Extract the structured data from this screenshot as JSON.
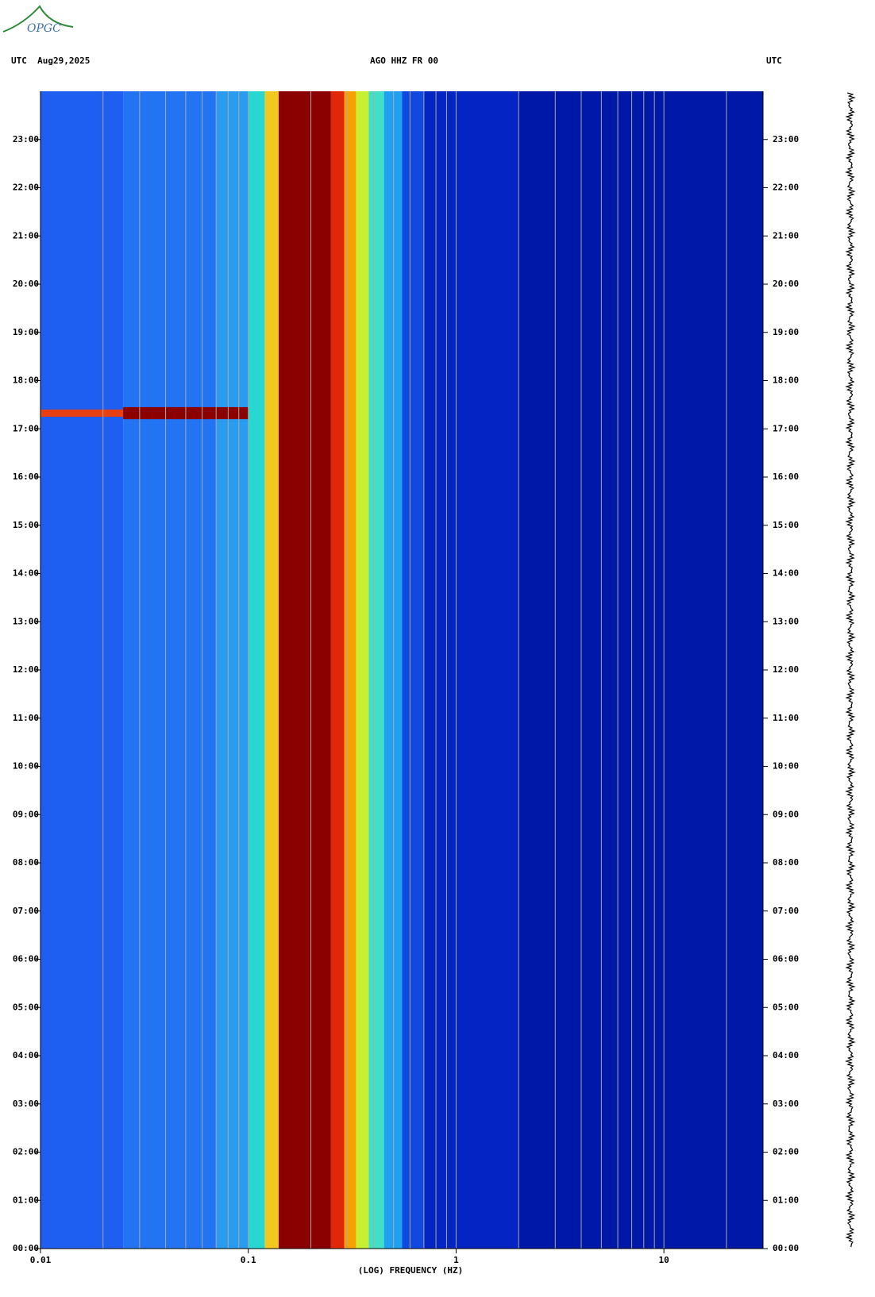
{
  "logo": "OPGC",
  "chart_data": {
    "type": "spectrogram",
    "title": "AGO HHZ FR 00",
    "left_header": "UTC  Aug29,2025",
    "right_header": "UTC",
    "xlabel": "(LOG) FREQUENCY (HZ)",
    "xscale": "log",
    "xlim": [
      0.01,
      30
    ],
    "xticks": [
      0.01,
      0.1,
      1,
      10
    ],
    "xgrid": [
      0.02,
      0.03,
      0.04,
      0.05,
      0.06,
      0.07,
      0.08,
      0.09,
      0.1,
      0.2,
      0.3,
      0.4,
      0.5,
      0.6,
      0.7,
      0.8,
      0.9,
      1,
      2,
      3,
      4,
      5,
      6,
      7,
      8,
      9,
      10,
      20
    ],
    "ylim": [
      0,
      24
    ],
    "yticks": [
      {
        "value": 0,
        "label": "00:00"
      },
      {
        "value": 1,
        "label": "01:00"
      },
      {
        "value": 2,
        "label": "02:00"
      },
      {
        "value": 3,
        "label": "03:00"
      },
      {
        "value": 4,
        "label": "04:00"
      },
      {
        "value": 5,
        "label": "05:00"
      },
      {
        "value": 6,
        "label": "06:00"
      },
      {
        "value": 7,
        "label": "07:00"
      },
      {
        "value": 8,
        "label": "08:00"
      },
      {
        "value": 9,
        "label": "09:00"
      },
      {
        "value": 10,
        "label": "10:00"
      },
      {
        "value": 11,
        "label": "11:00"
      },
      {
        "value": 12,
        "label": "12:00"
      },
      {
        "value": 13,
        "label": "13:00"
      },
      {
        "value": 14,
        "label": "14:00"
      },
      {
        "value": 15,
        "label": "15:00"
      },
      {
        "value": 16,
        "label": "16:00"
      },
      {
        "value": 17,
        "label": "17:00"
      },
      {
        "value": 18,
        "label": "18:00"
      },
      {
        "value": 19,
        "label": "19:00"
      },
      {
        "value": 20,
        "label": "20:00"
      },
      {
        "value": 21,
        "label": "21:00"
      },
      {
        "value": 22,
        "label": "22:00"
      },
      {
        "value": 23,
        "label": "23:00"
      }
    ],
    "bands": [
      {
        "x": [
          0.01,
          0.025
        ],
        "color": "#1e5ef0"
      },
      {
        "x": [
          0.025,
          0.07
        ],
        "color": "#2274f2"
      },
      {
        "x": [
          0.07,
          0.1
        ],
        "color": "#2a9cf0"
      },
      {
        "x": [
          0.1,
          0.12
        ],
        "color": "#28d8d0"
      },
      {
        "x": [
          0.12,
          0.14
        ],
        "color": "#f0c820"
      },
      {
        "x": [
          0.14,
          0.25
        ],
        "color": "#8b0000"
      },
      {
        "x": [
          0.25,
          0.29
        ],
        "color": "#e02808"
      },
      {
        "x": [
          0.29,
          0.33
        ],
        "color": "#f8a000"
      },
      {
        "x": [
          0.33,
          0.38
        ],
        "color": "#c8f030"
      },
      {
        "x": [
          0.38,
          0.45
        ],
        "color": "#40e0c8"
      },
      {
        "x": [
          0.45,
          0.55
        ],
        "color": "#20a0f0"
      },
      {
        "x": [
          0.55,
          0.7
        ],
        "color": "#1048e0"
      },
      {
        "x": [
          0.7,
          2
        ],
        "color": "#0424c4"
      },
      {
        "x": [
          2,
          30
        ],
        "color": "#0018a8"
      }
    ],
    "events": [
      {
        "x": [
          0.01,
          0.025
        ],
        "y": [
          17.25,
          17.4
        ],
        "color": "#e84010"
      },
      {
        "x": [
          0.025,
          0.1
        ],
        "y": [
          17.2,
          17.45
        ],
        "color": "#8b0000"
      }
    ]
  }
}
